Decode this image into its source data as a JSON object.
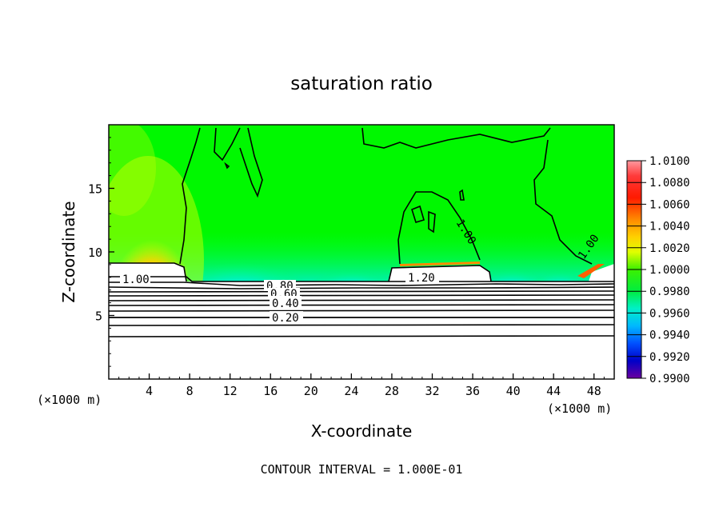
{
  "chart_data": {
    "type": "heatmap",
    "title": "saturation ratio",
    "xlabel": "X-coordinate",
    "ylabel": "Z-coordinate",
    "x_unit": "(×1000 m)",
    "z_unit": "(×1000 m)",
    "xlim": [
      0,
      50
    ],
    "ylim": [
      0,
      20
    ],
    "x_ticks": [
      "4",
      "8",
      "12",
      "16",
      "20",
      "24",
      "28",
      "32",
      "36",
      "40",
      "44",
      "48"
    ],
    "y_ticks": [
      "5",
      "10",
      "15"
    ],
    "x_tick_values": [
      4,
      8,
      12,
      16,
      20,
      24,
      28,
      32,
      36,
      40,
      44,
      48
    ],
    "y_tick_values": [
      5,
      10,
      15
    ],
    "colorbar": {
      "labels": [
        "1.0100",
        "1.0080",
        "1.0060",
        "1.0040",
        "1.0020",
        "1.0000",
        "0.9980",
        "0.9960",
        "0.9940",
        "0.9920",
        "0.9900"
      ],
      "colors": [
        "#ffb0b0",
        "#ff3a3a",
        "#ff1a00",
        "#ff8a00",
        "#ffd000",
        "#e8ff00",
        "#4cff00",
        "#00f050",
        "#00f0c0",
        "#00a8ff",
        "#0040ff",
        "#0000d0",
        "#5a00a0"
      ]
    },
    "contour_labels": [
      "1.00",
      "0.80",
      "0.60",
      "0.40",
      "0.20",
      "1.20",
      "1.00",
      "1.00"
    ],
    "contour_label_values": [
      1.0,
      0.8,
      0.6,
      0.4,
      0.2,
      1.2,
      1.0,
      1.0
    ],
    "contour_interval_text": "CONTOUR INTERVAL = 1.000E-01",
    "background_color": "#00ff00"
  }
}
